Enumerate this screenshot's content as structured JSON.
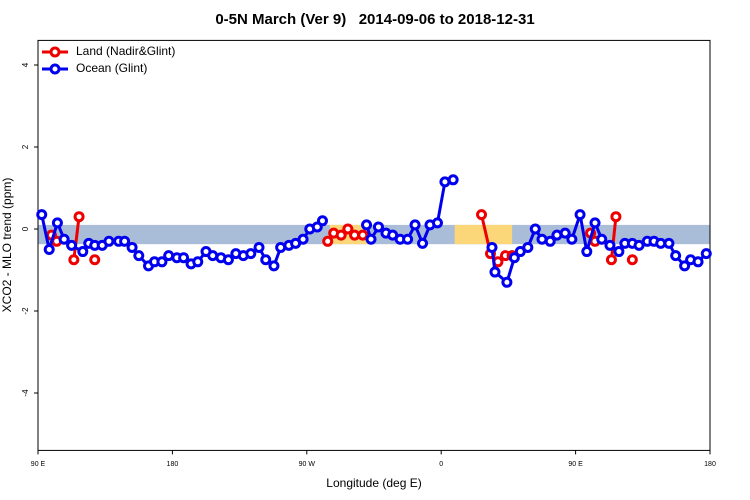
{
  "chart_data": {
    "type": "line",
    "title": "0-5N March (Ver 9)   2014-09-06 to 2018-12-31",
    "x_label": "Longitude (deg E)",
    "y_label": "XCO2 - MLO trend (ppm)",
    "xlim": [
      90,
      540
    ],
    "ylim": [
      -5.4,
      4.6
    ],
    "xticks": [
      {
        "value": 90,
        "label": "90 E"
      },
      {
        "value": 180,
        "label": "180"
      },
      {
        "value": 270,
        "label": "90 W"
      },
      {
        "value": 360,
        "label": "0"
      },
      {
        "value": 450,
        "label": "90 E"
      },
      {
        "value": 540,
        "label": "180"
      }
    ],
    "yticks": [
      -4,
      -2,
      0,
      2,
      4
    ],
    "legend": "top-left",
    "bands": [
      {
        "x": [
          90,
          540
        ],
        "y": [
          -0.37,
          0.1
        ],
        "color": "#a9bcd8"
      },
      {
        "x": [
          285.5,
          311
        ],
        "y": [
          -0.37,
          0.1
        ],
        "color": "#fbd77a"
      },
      {
        "x": [
          369,
          407.5
        ],
        "y": [
          -0.37,
          0.1
        ],
        "color": "#fbd77a"
      }
    ],
    "series": [
      {
        "name": "Land (Nadir&Glint)",
        "color": "#ee0000",
        "x": [
          99,
          102.5,
          null,
          114,
          117.5,
          null,
          128,
          null,
          284,
          288,
          293,
          297.5,
          302,
          307.5,
          null,
          387,
          393,
          398,
          403,
          407.5,
          null,
          460,
          463,
          null,
          474,
          477,
          null,
          488
        ],
        "values": [
          -0.15,
          -0.3,
          null,
          -0.75,
          0.3,
          null,
          -0.75,
          null,
          -0.3,
          -0.1,
          -0.15,
          0,
          -0.15,
          -0.15,
          null,
          0.35,
          -0.6,
          -0.8,
          -0.65,
          -0.65,
          null,
          -0.1,
          -0.3,
          null,
          -0.75,
          0.3,
          null,
          -0.75
        ]
      },
      {
        "name": "Ocean (Glint)",
        "color": "#0000ee",
        "x": [
          92.5,
          97.5,
          103,
          107.5,
          112.5,
          120,
          124,
          128,
          133,
          137.5,
          144,
          148,
          153,
          157.5,
          164,
          168,
          173,
          177.5,
          183,
          187.5,
          192.5,
          197,
          202.5,
          207,
          212.5,
          217.5,
          222.5,
          227.5,
          232.5,
          238,
          242.5,
          248,
          252.5,
          258,
          262.5,
          267.5,
          272,
          277,
          280.5,
          null,
          310,
          313,
          318,
          323,
          327.5,
          332.5,
          337.5,
          342.5,
          347.5,
          352.5,
          357.5,
          362.5,
          368,
          null,
          394,
          396,
          404,
          409,
          413,
          418,
          423,
          427.5,
          433,
          437.5,
          443,
          447.5,
          453,
          457.5,
          463,
          467.5,
          473,
          479,
          483,
          488,
          492.5,
          498,
          502.5,
          507,
          512.5,
          517,
          523,
          527,
          532,
          537.5
        ],
        "values": [
          0.35,
          -0.5,
          0.15,
          -0.25,
          -0.4,
          -0.55,
          -0.35,
          -0.4,
          -0.4,
          -0.3,
          -0.3,
          -0.3,
          -0.45,
          -0.65,
          -0.9,
          -0.8,
          -0.8,
          -0.65,
          -0.7,
          -0.7,
          -0.85,
          -0.8,
          -0.55,
          -0.65,
          -0.7,
          -0.75,
          -0.6,
          -0.65,
          -0.6,
          -0.45,
          -0.75,
          -0.9,
          -0.45,
          -0.4,
          -0.35,
          -0.25,
          0,
          0.05,
          0.2,
          null,
          0.1,
          -0.25,
          0.05,
          -0.1,
          -0.15,
          -0.25,
          -0.25,
          0.1,
          -0.35,
          0.1,
          0.15,
          1.15,
          1.2,
          null,
          -0.45,
          -1.05,
          -1.3,
          -0.7,
          -0.55,
          -0.45,
          0,
          -0.25,
          -0.3,
          -0.15,
          -0.1,
          -0.25,
          0.35,
          -0.55,
          0.15,
          -0.25,
          -0.4,
          -0.55,
          -0.35,
          -0.35,
          -0.4,
          -0.3,
          -0.3,
          -0.35,
          -0.35,
          -0.65,
          -0.9,
          -0.75,
          -0.8,
          -0.6
        ]
      }
    ]
  }
}
